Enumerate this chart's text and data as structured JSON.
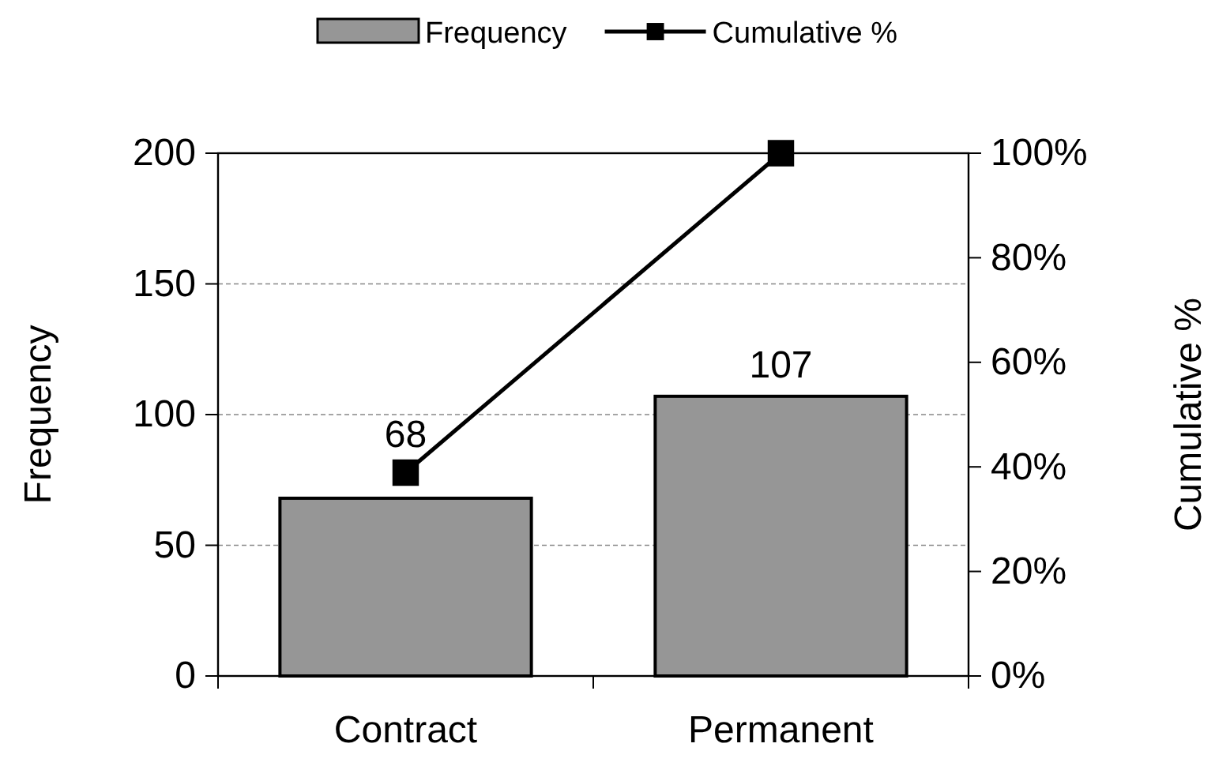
{
  "chart_data": {
    "type": "bar",
    "categories": [
      "Contract",
      "Permanent"
    ],
    "ylabel": "Frequency",
    "y2label": "Cumulative %",
    "series": [
      {
        "name": "Frequency",
        "color": "#969696",
        "values": [
          68,
          107
        ],
        "value_labels": [
          "68",
          "107"
        ]
      },
      {
        "name": "Cumulative %",
        "type": "line",
        "axis": "y2",
        "color": "#000000",
        "values": [
          38.9,
          100
        ]
      }
    ],
    "ylim": [
      0,
      200
    ],
    "yticks": [
      0,
      50,
      100,
      150,
      200
    ],
    "y2lim": [
      0,
      100
    ],
    "y2ticks": [
      {
        "value": 0,
        "label": "0%"
      },
      {
        "value": 20,
        "label": "20%"
      },
      {
        "value": 40,
        "label": "40%"
      },
      {
        "value": 60,
        "label": "60%"
      },
      {
        "value": 80,
        "label": "80%"
      },
      {
        "value": 100,
        "label": "100%"
      }
    ],
    "grid": "y",
    "legend": "top",
    "marker": "square",
    "line_style": "solid"
  }
}
